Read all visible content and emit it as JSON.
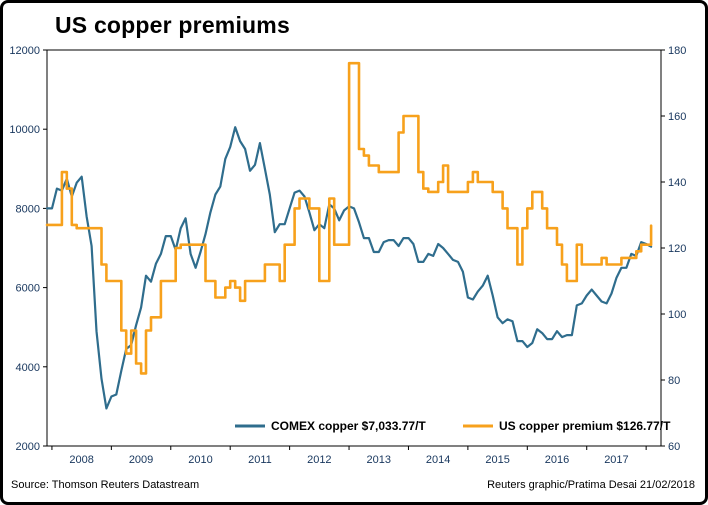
{
  "title": "US copper premiums",
  "footer": {
    "source": "Source: Thomson Reuters Datastream",
    "credit": "Reuters graphic/Pratima Desai 21/02/2018"
  },
  "chart_data": {
    "type": "line",
    "title": "US copper premiums",
    "x_axis": {
      "min": 2007.917,
      "max": 2018.25,
      "interval_years": 0.0833333,
      "year_tick_labels": [
        "2008",
        "2009",
        "2010",
        "2011",
        "2012",
        "2013",
        "2014",
        "2015",
        "2016",
        "2017"
      ],
      "year_boundaries": [
        2008,
        2009,
        2010,
        2011,
        2012,
        2013,
        2014,
        2015,
        2016,
        2017,
        2018
      ]
    },
    "left_axis": {
      "min": 2000,
      "max": 12000,
      "ticks": [
        2000,
        4000,
        6000,
        8000,
        10000,
        12000
      ]
    },
    "right_axis": {
      "min": 60,
      "max": 180,
      "ticks": [
        60,
        80,
        100,
        120,
        140,
        160,
        180
      ]
    },
    "series": [
      {
        "name": "COMEX copper $7,033.77/T",
        "axis": "left",
        "color": "#2f6d8d",
        "style": "line",
        "line_width": 2.2,
        "values": [
          8000,
          8000,
          8500,
          8450,
          8750,
          8300,
          8650,
          8800,
          7800,
          7050,
          4900,
          3700,
          2950,
          3250,
          3300,
          3900,
          4450,
          4550,
          5050,
          5500,
          6300,
          6150,
          6600,
          6850,
          7300,
          7300,
          6950,
          7500,
          7750,
          6850,
          6500,
          6900,
          7350,
          7900,
          8350,
          8550,
          9250,
          9550,
          10050,
          9700,
          9500,
          8950,
          9100,
          9650,
          9000,
          8350,
          7400,
          7600,
          7600,
          8000,
          8400,
          8450,
          8300,
          7900,
          7450,
          7600,
          7500,
          8100,
          8000,
          7700,
          7950,
          8050,
          8000,
          7650,
          7250,
          7250,
          6900,
          6900,
          7150,
          7200,
          7200,
          7050,
          7250,
          7250,
          7100,
          6650,
          6650,
          6850,
          6800,
          7100,
          7000,
          6850,
          6700,
          6650,
          6400,
          5750,
          5700,
          5900,
          6050,
          6300,
          5800,
          5250,
          5100,
          5200,
          5150,
          4650,
          4650,
          4500,
          4600,
          4950,
          4850,
          4700,
          4700,
          4900,
          4750,
          4800,
          4800,
          5550,
          5600,
          5800,
          5950,
          5800,
          5650,
          5600,
          5850,
          6250,
          6500,
          6500,
          6850,
          6800,
          7150,
          7100,
          7033.77
        ]
      },
      {
        "name": "US copper premium $126.77/T",
        "axis": "right",
        "color": "#f7a11c",
        "style": "step",
        "line_width": 2.6,
        "values": [
          127,
          127,
          127,
          143,
          138,
          127,
          126,
          126,
          126,
          126,
          126,
          115,
          110,
          110,
          110,
          95,
          88,
          95,
          85,
          82,
          95,
          99,
          99,
          110,
          110,
          110,
          120,
          121,
          121,
          121,
          121,
          121,
          110,
          110,
          105,
          105,
          108,
          110,
          108,
          104,
          110,
          110,
          110,
          110,
          115,
          115,
          115,
          110,
          121,
          121,
          132,
          135,
          135,
          132,
          132,
          110,
          110,
          135,
          121,
          121,
          121,
          176,
          176,
          150,
          148,
          145,
          145,
          143,
          143,
          143,
          143,
          155,
          160,
          160,
          160,
          143,
          138,
          137,
          137,
          140,
          145,
          137,
          137,
          137,
          137,
          140,
          143,
          140,
          140,
          140,
          137,
          137,
          132,
          126,
          126,
          115,
          126,
          132,
          137,
          137,
          132,
          126,
          126,
          121,
          115,
          110,
          110,
          121,
          115,
          115,
          115,
          115,
          117,
          115,
          115,
          115,
          117,
          117,
          117,
          119,
          121,
          121,
          126.77
        ]
      }
    ],
    "legend": {
      "position": "inside-bottom-center"
    }
  }
}
